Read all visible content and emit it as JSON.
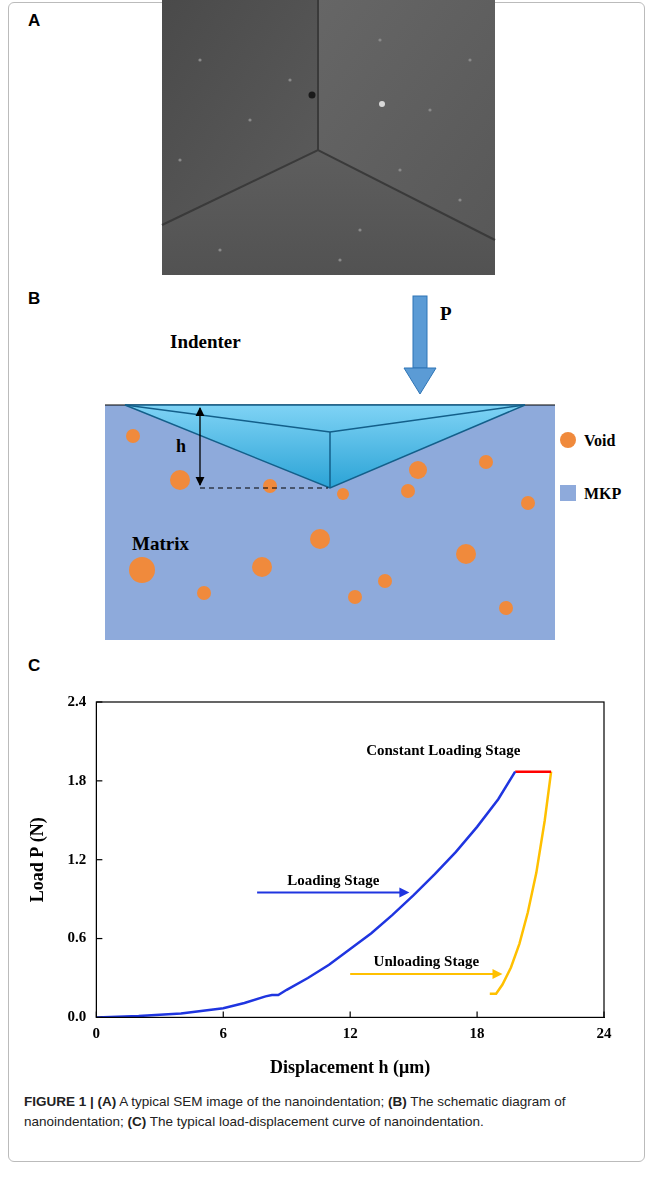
{
  "panels": [
    {
      "letter": "A"
    },
    {
      "letter": "B",
      "labels": {
        "indenter": "Indenter",
        "load": "P",
        "depth": "h",
        "matrix": "Matrix"
      },
      "legend": [
        {
          "label": "Void",
          "color": "#f08a3c"
        },
        {
          "label": "MKP",
          "color": "#8eaadb"
        }
      ]
    },
    {
      "letter": "C"
    }
  ],
  "chart_data": {
    "type": "line",
    "x_label": "Displacement h (μm)",
    "y_label": "Load P (N)",
    "xlim": [
      0,
      24
    ],
    "xticks": [
      0,
      6,
      12,
      18,
      24
    ],
    "ylim": [
      0,
      2.4
    ],
    "yticks": [
      {
        "value": 0,
        "label": "0.0"
      },
      0.6,
      1.2,
      1.8,
      2.4
    ],
    "grid": false,
    "series": [
      {
        "color": "#1f35e0",
        "x": [
          0,
          2,
          4,
          6,
          7,
          8,
          8.3,
          8.6,
          9,
          10,
          11,
          12,
          13,
          14,
          15,
          16,
          17,
          18,
          19,
          19.8
        ],
        "values": [
          0,
          0.01,
          0.03,
          0.07,
          0.11,
          0.16,
          0.17,
          0.17,
          0.21,
          0.3,
          0.4,
          0.52,
          0.64,
          0.78,
          0.93,
          1.09,
          1.26,
          1.45,
          1.66,
          1.87
        ]
      },
      {
        "color": "#ff0000",
        "x": [
          19.8,
          21.5
        ],
        "values": [
          1.87,
          1.87
        ]
      },
      {
        "color": "#ffc000",
        "x": [
          21.5,
          21.2,
          20.8,
          20.4,
          20,
          19.6,
          19.2,
          18.9,
          18.6
        ],
        "values": [
          1.87,
          1.5,
          1.1,
          0.8,
          0.56,
          0.38,
          0.25,
          0.18,
          0.18
        ]
      }
    ],
    "annotations": [
      {
        "text": "Constant Loading Stage"
      },
      {
        "text": "Loading Stage"
      },
      {
        "text": "Unloading Stage"
      }
    ]
  },
  "caption": {
    "label": "FIGURE 1 |",
    "parts": [
      {
        "letter": "(A)",
        "text": "A typical SEM image of the nanoindentation;"
      },
      {
        "letter": "(B)",
        "text": "The schematic diagram of nanoindentation;"
      },
      {
        "letter": "(C)",
        "text": "The typical load-displacement curve of nanoindentation."
      }
    ]
  }
}
